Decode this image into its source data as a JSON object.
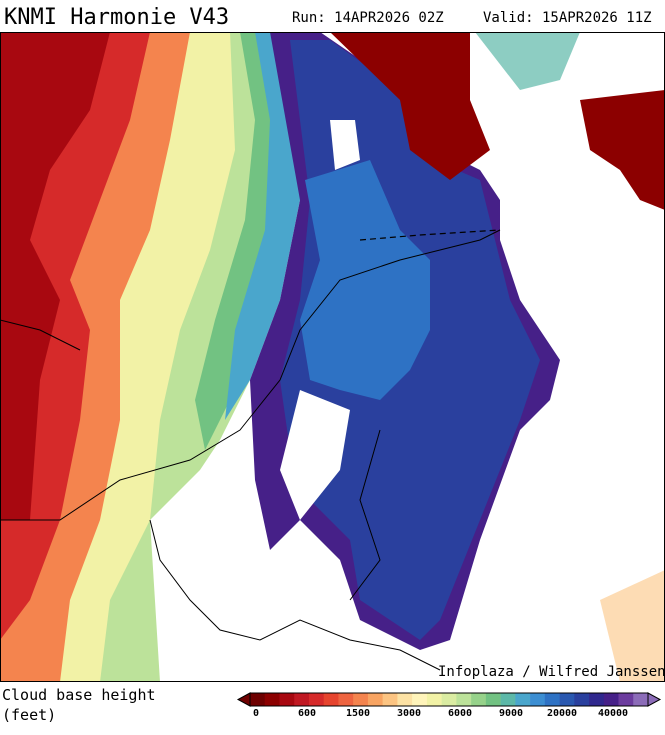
{
  "header": {
    "title": "KNMI Harmonie V43",
    "run": "Run: 14APR2026 02Z",
    "valid": "Valid: 15APR2026 11Z"
  },
  "map": {
    "credit": "Infoplaza / Wilfred Janssen"
  },
  "legend": {
    "title": "Cloud base height",
    "unit": "(feet)",
    "colors": [
      "#6e0000",
      "#8c0000",
      "#a80810",
      "#c01822",
      "#d62a2a",
      "#e6442e",
      "#ee6440",
      "#f4844e",
      "#f8a462",
      "#fcc482",
      "#fde2a4",
      "#fff4ba",
      "#f2f2a6",
      "#daeca2",
      "#bce29a",
      "#96d28a",
      "#72c282",
      "#5cb8a8",
      "#4aa6cc",
      "#3c8ed2",
      "#2e72c4",
      "#2a58b0",
      "#2a409e",
      "#30288e",
      "#462088",
      "#6c3c9e",
      "#8c6cb8"
    ],
    "ticks": [
      0,
      600,
      1500,
      3000,
      6000,
      9000,
      20000,
      40000
    ]
  }
}
